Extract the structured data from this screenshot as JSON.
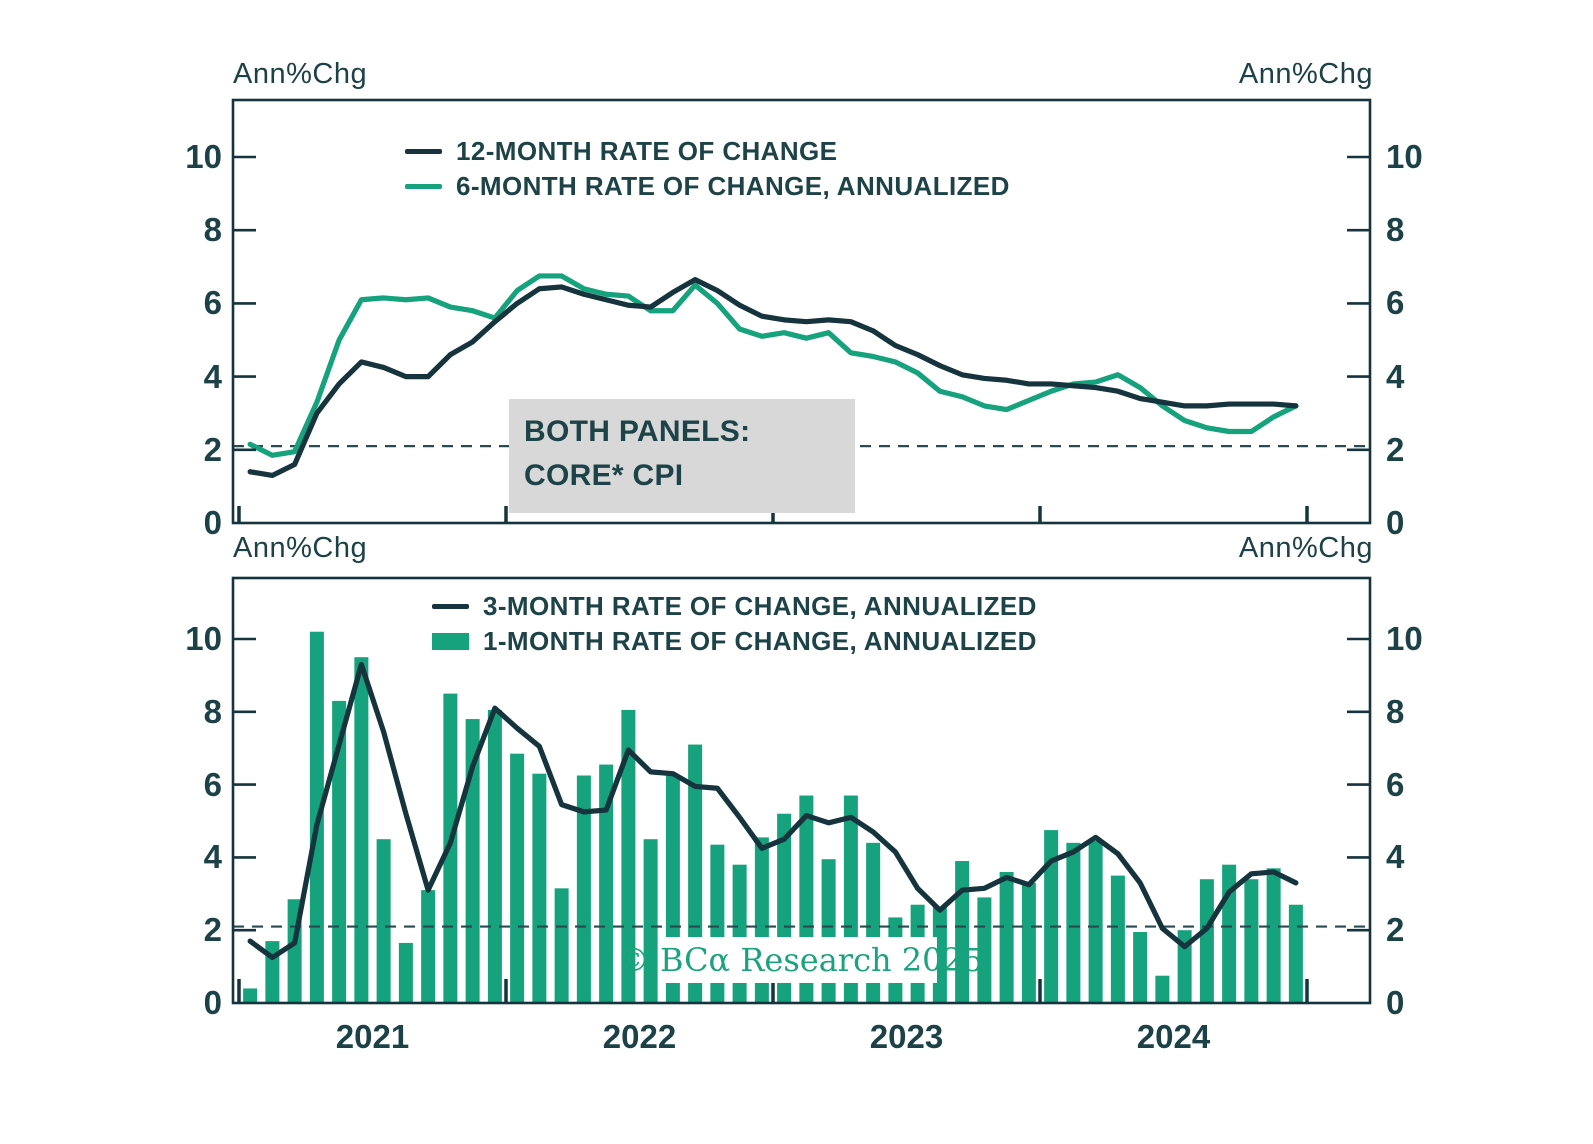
{
  "y_axis_unit_label": "Ann%Chg",
  "watermark_text": "© BCα Research 2025",
  "annotation": {
    "line1": "BOTH PANELS:",
    "line2": "CORE* CPI"
  },
  "colors": {
    "dark_line": "#15343D",
    "green": "#15A27C",
    "text": "#1C4248",
    "annotation_bg": "#D8D8D8",
    "watermark_green": "#1BA37D",
    "dashed_line": "#2A4A50"
  },
  "axes": {
    "y_ticks": [
      0,
      2,
      4,
      6,
      8,
      10
    ],
    "x_year_labels": [
      "2021",
      "2022",
      "2023",
      "2024"
    ],
    "dashed_reference_value": 2.1
  },
  "chart_data": [
    {
      "panel": "top",
      "type": "line",
      "title": "",
      "ylabel_left": "Ann%Chg",
      "ylabel_right": "Ann%Chg",
      "x_start": "2021-01",
      "x_end": "2024-12",
      "x_frequency": "monthly",
      "ylim": [
        0,
        11.6
      ],
      "grid": false,
      "legend_position": "top-center-inside",
      "dashed_reference_value": 2.1,
      "series": [
        {
          "name": "12-MONTH RATE OF CHANGE",
          "style": "line",
          "color_key": "dark_line",
          "values": [
            1.4,
            1.3,
            1.6,
            3.0,
            3.8,
            4.4,
            4.25,
            4.0,
            4.0,
            4.6,
            4.95,
            5.5,
            6.0,
            6.4,
            6.45,
            6.25,
            6.1,
            5.95,
            5.9,
            6.3,
            6.65,
            6.35,
            5.95,
            5.65,
            5.55,
            5.5,
            5.55,
            5.5,
            5.25,
            4.85,
            4.6,
            4.3,
            4.05,
            3.95,
            3.9,
            3.8,
            3.8,
            3.75,
            3.7,
            3.6,
            3.4,
            3.3,
            3.2,
            3.2,
            3.25,
            3.25,
            3.25,
            3.2
          ]
        },
        {
          "name": "6-MONTH RATE OF CHANGE, ANNUALIZED",
          "style": "line",
          "color_key": "green",
          "values": [
            2.15,
            1.85,
            1.95,
            3.3,
            5.0,
            6.1,
            6.15,
            6.1,
            6.15,
            5.9,
            5.8,
            5.6,
            6.35,
            6.75,
            6.75,
            6.4,
            6.25,
            6.2,
            5.8,
            5.8,
            6.5,
            6.0,
            5.3,
            5.1,
            5.2,
            5.05,
            5.2,
            4.65,
            4.55,
            4.4,
            4.1,
            3.6,
            3.45,
            3.2,
            3.1,
            3.35,
            3.6,
            3.8,
            3.85,
            4.05,
            3.7,
            3.2,
            2.8,
            2.6,
            2.5,
            2.5,
            2.9,
            3.2
          ]
        }
      ]
    },
    {
      "panel": "bottom",
      "type": "bar+line",
      "title": "",
      "ylabel_left": "Ann%Chg",
      "ylabel_right": "Ann%Chg",
      "x_start": "2021-01",
      "x_end": "2024-12",
      "x_frequency": "monthly",
      "ylim": [
        0,
        11.7
      ],
      "grid": false,
      "legend_position": "top-center-inside",
      "dashed_reference_value": 2.1,
      "series": [
        {
          "name": "3-MONTH RATE OF CHANGE, ANNUALIZED",
          "style": "line",
          "color_key": "dark_line",
          "values": [
            1.7,
            1.25,
            1.65,
            4.9,
            7.1,
            9.3,
            7.45,
            5.2,
            3.1,
            4.4,
            6.5,
            8.1,
            7.55,
            7.05,
            5.45,
            5.25,
            5.3,
            6.95,
            6.35,
            6.3,
            5.95,
            5.9,
            5.1,
            4.25,
            4.5,
            5.15,
            4.95,
            5.1,
            4.7,
            4.15,
            3.15,
            2.55,
            3.1,
            3.15,
            3.45,
            3.25,
            3.9,
            4.15,
            4.55,
            4.1,
            3.3,
            2.05,
            1.55,
            2.05,
            3.05,
            3.55,
            3.6,
            3.3
          ]
        },
        {
          "name": "1-MONTH RATE OF CHANGE, ANNUALIZED",
          "style": "bar",
          "color_key": "green",
          "values": [
            0.4,
            1.7,
            2.85,
            10.2,
            8.3,
            9.5,
            4.5,
            1.65,
            3.1,
            8.5,
            7.8,
            8.05,
            6.85,
            6.3,
            3.15,
            6.25,
            6.55,
            8.05,
            4.5,
            6.25,
            7.1,
            4.35,
            3.8,
            4.55,
            5.2,
            5.7,
            3.95,
            5.7,
            4.4,
            2.35,
            2.7,
            2.65,
            3.9,
            2.9,
            3.6,
            3.3,
            4.75,
            4.4,
            4.45,
            3.5,
            1.95,
            0.75,
            2.0,
            3.4,
            3.8,
            3.4,
            3.7,
            2.7
          ]
        }
      ]
    }
  ]
}
